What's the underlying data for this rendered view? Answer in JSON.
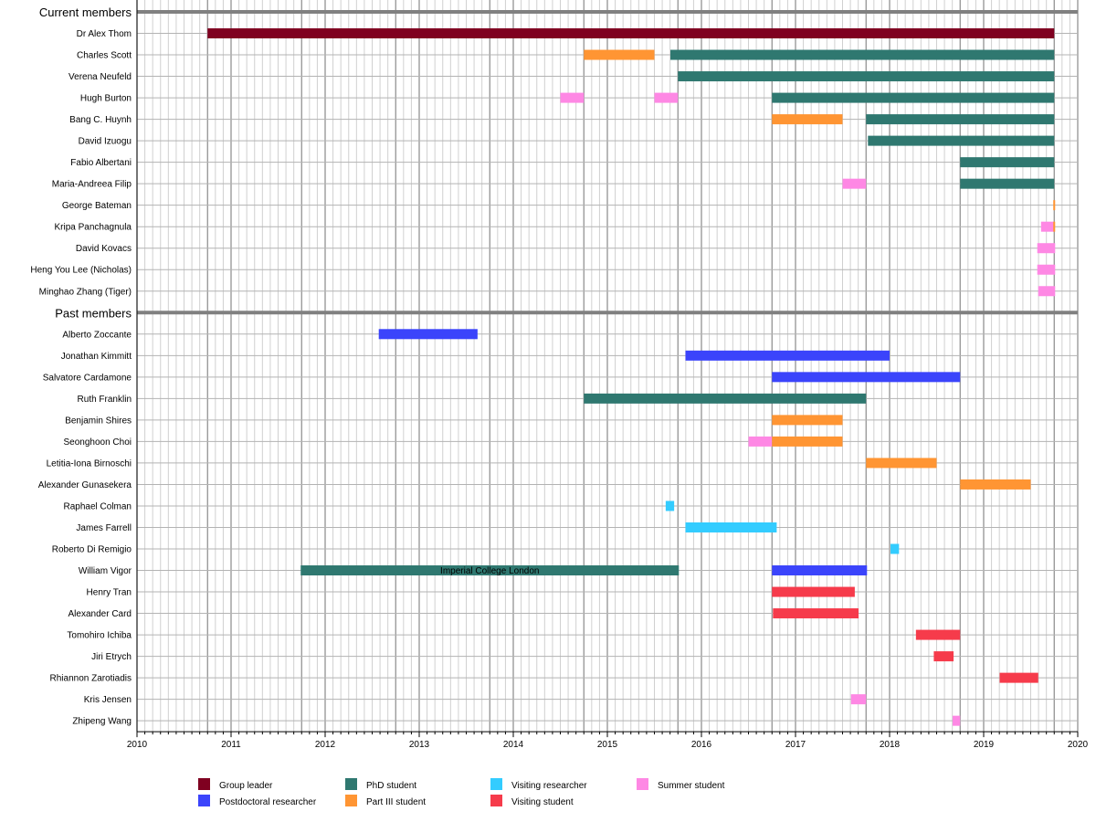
{
  "chart_data": {
    "type": "gantt",
    "title": "",
    "xlabel": "",
    "ylabel": "",
    "xlim": [
      2010,
      2020
    ],
    "x_ticks": [
      "2010",
      "2011",
      "2012",
      "2013",
      "2014",
      "2015",
      "2016",
      "2017",
      "2018",
      "2019",
      "2020"
    ],
    "grid": true,
    "minor_grid": "monthly",
    "legend_position": "bottom",
    "categories": {
      "group_leader": {
        "label": "Group leader",
        "color": "#7f0020"
      },
      "postdoc": {
        "label": "Postdoctoral researcher",
        "color": "#3b44fb"
      },
      "phd": {
        "label": "PhD student",
        "color": "#2f7870"
      },
      "part3": {
        "label": "Part III student",
        "color": "#ff9533"
      },
      "visiting_researcher": {
        "label": "Visiting researcher",
        "color": "#33ccff"
      },
      "visiting_student": {
        "label": "Visiting student",
        "color": "#f63b4b"
      },
      "summer": {
        "label": "Summer student",
        "color": "#fe88e4"
      }
    },
    "legend_order": [
      "group_leader",
      "postdoc",
      "phd",
      "part3",
      "visiting_researcher",
      "visiting_student",
      "summer"
    ],
    "sections": [
      {
        "title": "Current members",
        "members": [
          {
            "name": "Dr Alex Thom",
            "periods": [
              {
                "role": "group_leader",
                "start": 2010.75,
                "end": 2019.75
              }
            ]
          },
          {
            "name": "Charles Scott",
            "periods": [
              {
                "role": "part3",
                "start": 2014.75,
                "end": 2015.5
              },
              {
                "role": "phd",
                "start": 2015.67,
                "end": 2019.75
              }
            ]
          },
          {
            "name": "Verena Neufeld",
            "periods": [
              {
                "role": "phd",
                "start": 2015.75,
                "end": 2019.75
              }
            ]
          },
          {
            "name": "Hugh Burton",
            "periods": [
              {
                "role": "summer",
                "start": 2014.5,
                "end": 2014.75
              },
              {
                "role": "summer",
                "start": 2015.5,
                "end": 2015.75
              },
              {
                "role": "phd",
                "start": 2016.75,
                "end": 2019.75
              }
            ]
          },
          {
            "name": "Bang C. Huynh",
            "periods": [
              {
                "role": "part3",
                "start": 2016.75,
                "end": 2017.5
              },
              {
                "role": "phd",
                "start": 2017.75,
                "end": 2019.75
              }
            ]
          },
          {
            "name": "David Izuogu",
            "periods": [
              {
                "role": "phd",
                "start": 2017.77,
                "end": 2019.75
              }
            ]
          },
          {
            "name": "Fabio Albertani",
            "periods": [
              {
                "role": "phd",
                "start": 2018.75,
                "end": 2019.75
              }
            ]
          },
          {
            "name": "Maria-Andreea Filip",
            "periods": [
              {
                "role": "summer",
                "start": 2017.5,
                "end": 2017.75
              },
              {
                "role": "phd",
                "start": 2018.75,
                "end": 2019.75
              }
            ]
          },
          {
            "name": "George Bateman",
            "periods": [
              {
                "role": "part3",
                "start": 2019.74,
                "end": 2019.76
              }
            ]
          },
          {
            "name": "Kripa Panchagnula",
            "periods": [
              {
                "role": "summer",
                "start": 2019.61,
                "end": 2019.75
              },
              {
                "role": "part3",
                "start": 2019.74,
                "end": 2019.76
              }
            ]
          },
          {
            "name": "David Kovacs",
            "periods": [
              {
                "role": "summer",
                "start": 2019.57,
                "end": 2019.76
              }
            ]
          },
          {
            "name": "Heng You Lee (Nicholas)",
            "periods": [
              {
                "role": "summer",
                "start": 2019.57,
                "end": 2019.76
              }
            ]
          },
          {
            "name": "Minghao Zhang (Tiger)",
            "periods": [
              {
                "role": "summer",
                "start": 2019.58,
                "end": 2019.76
              }
            ]
          }
        ]
      },
      {
        "title": "Past members",
        "members": [
          {
            "name": "Alberto Zoccante",
            "periods": [
              {
                "role": "postdoc",
                "start": 2012.57,
                "end": 2013.62
              }
            ]
          },
          {
            "name": "Jonathan Kimmitt",
            "periods": [
              {
                "role": "postdoc",
                "start": 2015.83,
                "end": 2018.0
              }
            ]
          },
          {
            "name": "Salvatore Cardamone",
            "periods": [
              {
                "role": "postdoc",
                "start": 2016.75,
                "end": 2018.75
              }
            ]
          },
          {
            "name": "Ruth Franklin",
            "periods": [
              {
                "role": "phd",
                "start": 2014.75,
                "end": 2017.75
              }
            ]
          },
          {
            "name": "Benjamin Shires",
            "periods": [
              {
                "role": "part3",
                "start": 2016.75,
                "end": 2017.5
              }
            ]
          },
          {
            "name": "Seonghoon Choi",
            "periods": [
              {
                "role": "summer",
                "start": 2016.5,
                "end": 2016.75
              },
              {
                "role": "part3",
                "start": 2016.75,
                "end": 2017.5
              }
            ]
          },
          {
            "name": "Letitia-Iona Birnoschi",
            "periods": [
              {
                "role": "part3",
                "start": 2017.75,
                "end": 2018.5
              }
            ]
          },
          {
            "name": "Alexander Gunasekera",
            "periods": [
              {
                "role": "part3",
                "start": 2018.75,
                "end": 2019.5
              }
            ]
          },
          {
            "name": "Raphael Colman",
            "periods": [
              {
                "role": "visiting_researcher",
                "start": 2015.62,
                "end": 2015.71
              }
            ]
          },
          {
            "name": "James Farrell",
            "periods": [
              {
                "role": "visiting_researcher",
                "start": 2015.83,
                "end": 2016.8
              }
            ]
          },
          {
            "name": "Roberto Di Remigio",
            "periods": [
              {
                "role": "visiting_researcher",
                "start": 2018.01,
                "end": 2018.1
              }
            ]
          },
          {
            "name": "William Vigor",
            "periods": [
              {
                "role": "phd",
                "start": 2011.74,
                "end": 2015.76,
                "label": "Imperial College London"
              },
              {
                "role": "postdoc",
                "start": 2016.75,
                "end": 2017.76
              }
            ]
          },
          {
            "name": "Henry Tran",
            "periods": [
              {
                "role": "visiting_student",
                "start": 2016.75,
                "end": 2017.63
              }
            ]
          },
          {
            "name": "Alexander Card",
            "periods": [
              {
                "role": "visiting_student",
                "start": 2016.76,
                "end": 2017.67
              }
            ]
          },
          {
            "name": "Tomohiro Ichiba",
            "periods": [
              {
                "role": "visiting_student",
                "start": 2018.28,
                "end": 2018.75
              }
            ]
          },
          {
            "name": "Jiri Etrych",
            "periods": [
              {
                "role": "visiting_student",
                "start": 2018.47,
                "end": 2018.68
              }
            ]
          },
          {
            "name": "Rhiannon Zarotiadis",
            "periods": [
              {
                "role": "visiting_student",
                "start": 2019.17,
                "end": 2019.58
              }
            ]
          },
          {
            "name": "Kris Jensen",
            "periods": [
              {
                "role": "summer",
                "start": 2017.59,
                "end": 2017.75
              }
            ]
          },
          {
            "name": "Zhipeng Wang",
            "periods": [
              {
                "role": "summer",
                "start": 2018.67,
                "end": 2018.75
              }
            ]
          }
        ]
      }
    ]
  }
}
